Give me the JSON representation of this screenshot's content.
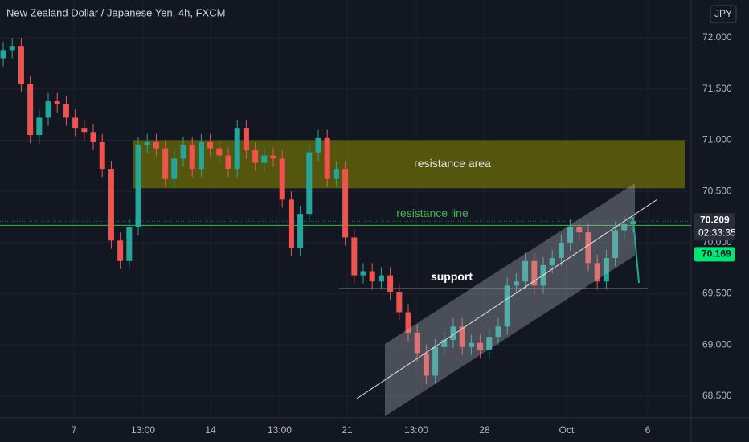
{
  "chart_data": {
    "type": "candlestick",
    "title": "New Zealand Dollar / Japanese Yen, 4h, FXCM",
    "currency": "JPY",
    "up_color": "#26a69a",
    "down_color": "#ef5350",
    "x": [
      0,
      1,
      2,
      3,
      4,
      5,
      6,
      7,
      8,
      9,
      10,
      11,
      12,
      13,
      14,
      15,
      16,
      17,
      18,
      19,
      20,
      21,
      22,
      23,
      24,
      25,
      26,
      27,
      28,
      29,
      30,
      31,
      32,
      33,
      34,
      35,
      36,
      37,
      38,
      39,
      40,
      41,
      42,
      43,
      44,
      45,
      46,
      47,
      48,
      49,
      50,
      51,
      52,
      53,
      54,
      55,
      56,
      57,
      58,
      59,
      60,
      61,
      62,
      63,
      64,
      65,
      66,
      67,
      68,
      69,
      70
    ],
    "open": [
      71.8,
      71.88,
      71.92,
      71.55,
      71.05,
      71.22,
      71.38,
      71.35,
      71.22,
      71.12,
      71.08,
      70.98,
      70.72,
      70.02,
      69.82,
      70.15,
      70.95,
      70.98,
      70.92,
      70.62,
      70.82,
      70.95,
      70.72,
      70.98,
      70.92,
      70.85,
      70.72,
      71.12,
      70.9,
      70.78,
      70.85,
      70.82,
      70.42,
      69.95,
      70.28,
      70.88,
      71.02,
      70.62,
      70.72,
      70.05,
      69.68,
      69.72,
      69.62,
      69.68,
      69.52,
      69.32,
      69.12,
      68.92,
      68.7,
      68.98,
      69.05,
      69.18,
      68.98,
      69.02,
      68.95,
      69.08,
      69.18,
      69.58,
      69.62,
      69.82,
      69.58,
      69.78,
      69.85,
      70.0,
      70.15,
      70.1,
      69.8,
      69.62,
      69.85,
      70.12,
      70.18
    ],
    "high": [
      71.96,
      72.0,
      72.0,
      71.63,
      71.3,
      71.46,
      71.46,
      71.43,
      71.3,
      71.2,
      71.16,
      71.06,
      70.8,
      70.1,
      70.23,
      71.03,
      71.06,
      71.06,
      71.0,
      70.9,
      71.03,
      71.03,
      71.06,
      71.06,
      71.0,
      70.93,
      71.2,
      71.2,
      70.98,
      70.93,
      70.93,
      70.9,
      70.5,
      70.36,
      70.96,
      71.1,
      71.1,
      70.8,
      70.8,
      70.13,
      69.8,
      69.8,
      69.76,
      69.76,
      69.6,
      69.4,
      69.2,
      69.0,
      69.06,
      69.13,
      69.26,
      69.26,
      69.1,
      69.1,
      69.16,
      69.26,
      69.66,
      69.7,
      69.9,
      69.9,
      69.86,
      69.93,
      70.08,
      70.23,
      70.23,
      70.18,
      69.88,
      69.93,
      70.2,
      70.26,
      70.25
    ],
    "low": [
      71.72,
      71.8,
      71.47,
      70.97,
      70.97,
      71.14,
      71.27,
      71.14,
      71.04,
      71.0,
      70.9,
      70.64,
      69.94,
      69.74,
      69.74,
      70.07,
      70.87,
      70.84,
      70.54,
      70.54,
      70.74,
      70.64,
      70.64,
      70.84,
      70.77,
      70.64,
      70.64,
      70.82,
      70.7,
      70.7,
      70.74,
      70.34,
      69.87,
      69.87,
      70.2,
      70.8,
      70.54,
      70.54,
      69.97,
      69.6,
      69.6,
      69.54,
      69.54,
      69.44,
      69.24,
      69.04,
      68.84,
      68.62,
      68.62,
      68.9,
      68.97,
      68.9,
      68.9,
      68.87,
      68.87,
      69.0,
      69.1,
      69.5,
      69.54,
      69.5,
      69.5,
      69.7,
      69.77,
      69.92,
      70.02,
      69.72,
      69.54,
      69.54,
      69.77,
      70.04,
      70.1
    ],
    "close": [
      71.88,
      71.92,
      71.55,
      71.05,
      71.22,
      71.38,
      71.35,
      71.22,
      71.12,
      71.08,
      70.98,
      70.72,
      70.02,
      69.82,
      70.15,
      70.95,
      70.98,
      70.92,
      70.62,
      70.82,
      70.95,
      70.72,
      70.98,
      70.92,
      70.85,
      70.72,
      71.12,
      70.9,
      70.78,
      70.85,
      70.82,
      70.42,
      69.95,
      70.28,
      70.88,
      71.02,
      70.62,
      70.72,
      70.05,
      69.68,
      69.72,
      69.62,
      69.68,
      69.52,
      69.32,
      69.12,
      68.92,
      68.7,
      68.98,
      69.05,
      69.18,
      68.98,
      69.02,
      68.95,
      69.08,
      69.18,
      69.58,
      69.62,
      69.82,
      69.58,
      69.78,
      69.85,
      70.0,
      70.15,
      70.1,
      69.8,
      69.62,
      69.85,
      70.12,
      70.18,
      70.209
    ],
    "xlim": [
      -0.36,
      76.43
    ],
    "xticks": [
      {
        "value": 7.86,
        "label": "7"
      },
      {
        "value": 15.54,
        "label": "13:00"
      },
      {
        "value": 23.04,
        "label": "14"
      },
      {
        "value": 30.71,
        "label": "13:00"
      },
      {
        "value": 38.21,
        "label": "21"
      },
      {
        "value": 45.89,
        "label": "13:00"
      },
      {
        "value": 53.48,
        "label": "28"
      },
      {
        "value": 62.59,
        "label": "Oct"
      },
      {
        "value": 71.61,
        "label": "6"
      }
    ],
    "ylim": [
      68.288,
      72.369
    ],
    "yticks": [
      {
        "value": 68.5,
        "label": "68.500"
      },
      {
        "value": 69,
        "label": "69.000"
      },
      {
        "value": 69.5,
        "label": "69.500"
      },
      {
        "value": 70,
        "label": "70.000"
      },
      {
        "value": 70.5,
        "label": "70.500"
      },
      {
        "value": 71,
        "label": "71.000"
      },
      {
        "value": 71.5,
        "label": "71.500"
      },
      {
        "value": 72,
        "label": "72.000"
      }
    ],
    "grid": true,
    "last_price": {
      "value": 70.209,
      "label": "70.209"
    },
    "countdown": "02:33:35",
    "line_price": {
      "value": 70.169,
      "label": "70.169"
    },
    "resistance_area": {
      "label": "resistance area",
      "range": [
        70.53,
        71.0
      ]
    },
    "resistance_line": {
      "label": "resistance line",
      "value": 70.169
    },
    "support": {
      "label": "support",
      "value": 69.55
    }
  }
}
